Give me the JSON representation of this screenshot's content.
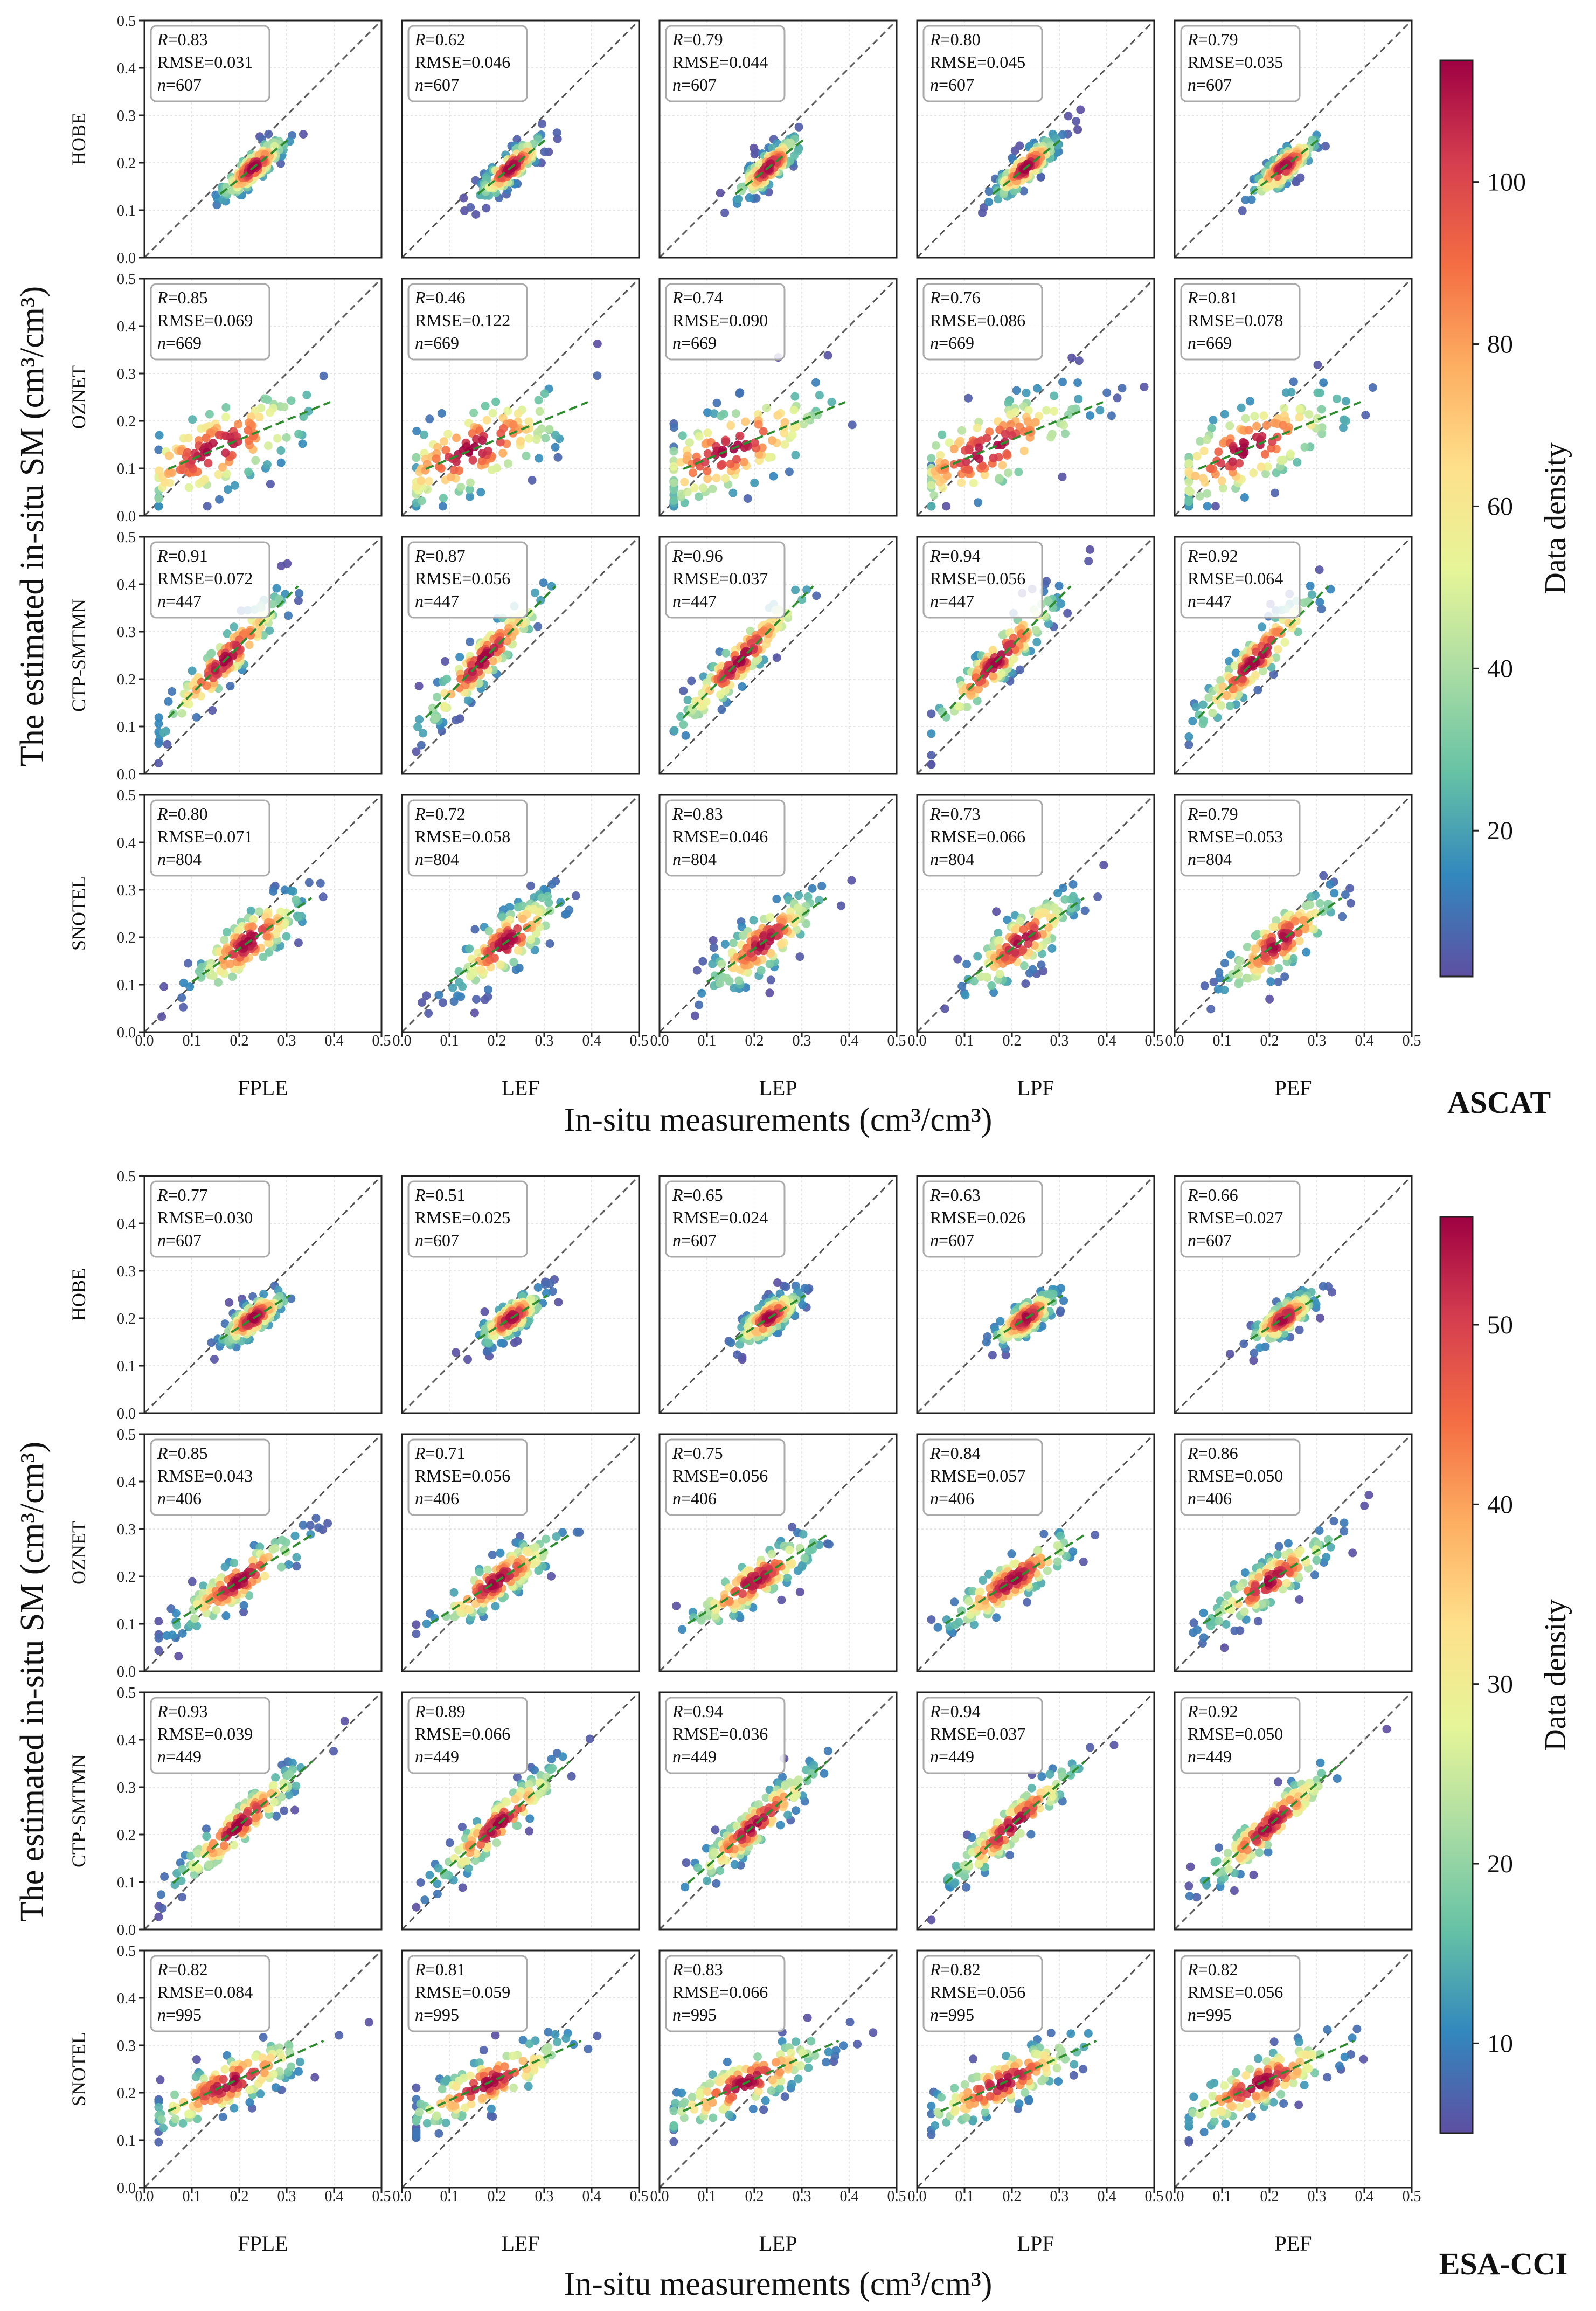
{
  "figure": {
    "sections": [
      {
        "product": "ASCAT",
        "ylabel": "The estimated in-situ SM (cm³/cm³)",
        "xlabel": "In-situ measurements (cm³/cm³)",
        "colorbar": {
          "label": "Data density",
          "min": 2,
          "max": 115,
          "ticks": [
            20,
            40,
            60,
            80,
            100
          ]
        }
      },
      {
        "product": "ESA-CCI",
        "ylabel": "The estimated in-situ SM (cm³/cm³)",
        "xlabel": "In-situ measurements (cm³/cm³)",
        "colorbar": {
          "label": "Data density",
          "min": 5,
          "max": 56,
          "ticks": [
            10,
            20,
            30,
            40,
            50
          ]
        }
      }
    ],
    "axis_ticks": [
      "0.0",
      "0.1",
      "0.2",
      "0.3",
      "0.4",
      "0.5"
    ],
    "methods": [
      "FPLE",
      "LEF",
      "LEP",
      "LPF",
      "PEF"
    ],
    "networks": [
      "HOBE",
      "OZNET",
      "CTP-SMTMN",
      "SNOTEL"
    ],
    "colormap": [
      "#5e4fa2",
      "#3288bd",
      "#66c2a5",
      "#abdda4",
      "#e6f598",
      "#fee08b",
      "#fdae61",
      "#f46d43",
      "#d53e4f",
      "#9e0142"
    ],
    "stat_labels": {
      "r": "R",
      "rmse": "RMSE=",
      "n": "n"
    }
  },
  "chart_data": [
    {
      "type": "scatter",
      "title": "ASCAT",
      "xlabel": "In-situ measurements (cm³/cm³)",
      "ylabel": "The estimated in-situ SM (cm³/cm³)",
      "xlim": [
        0,
        0.5
      ],
      "ylim": [
        0,
        0.5
      ],
      "reference_line": "1:1 dashed",
      "rows": [
        "HOBE",
        "OZNET",
        "CTP-SMTMN",
        "SNOTEL"
      ],
      "cols": [
        "FPLE",
        "LEF",
        "LEP",
        "LPF",
        "PEF"
      ],
      "stats": [
        [
          {
            "R": "0.83",
            "RMSE": "0.031",
            "n": "607"
          },
          {
            "R": "0.62",
            "RMSE": "0.046",
            "n": "607"
          },
          {
            "R": "0.79",
            "RMSE": "0.044",
            "n": "607"
          },
          {
            "R": "0.80",
            "RMSE": "0.045",
            "n": "607"
          },
          {
            "R": "0.79",
            "RMSE": "0.035",
            "n": "607"
          }
        ],
        [
          {
            "R": "0.85",
            "RMSE": "0.069",
            "n": "669"
          },
          {
            "R": "0.46",
            "RMSE": "0.122",
            "n": "669"
          },
          {
            "R": "0.74",
            "RMSE": "0.090",
            "n": "669"
          },
          {
            "R": "0.76",
            "RMSE": "0.086",
            "n": "669"
          },
          {
            "R": "0.81",
            "RMSE": "0.078",
            "n": "669"
          }
        ],
        [
          {
            "R": "0.91",
            "RMSE": "0.072",
            "n": "447"
          },
          {
            "R": "0.87",
            "RMSE": "0.056",
            "n": "447"
          },
          {
            "R": "0.96",
            "RMSE": "0.037",
            "n": "447"
          },
          {
            "R": "0.94",
            "RMSE": "0.056",
            "n": "447"
          },
          {
            "R": "0.92",
            "RMSE": "0.064",
            "n": "447"
          }
        ],
        [
          {
            "R": "0.80",
            "RMSE": "0.071",
            "n": "804"
          },
          {
            "R": "0.72",
            "RMSE": "0.058",
            "n": "804"
          },
          {
            "R": "0.83",
            "RMSE": "0.046",
            "n": "804"
          },
          {
            "R": "0.73",
            "RMSE": "0.066",
            "n": "804"
          },
          {
            "R": "0.79",
            "RMSE": "0.053",
            "n": "804"
          }
        ]
      ],
      "point_clouds": {
        "HOBE": {
          "cx": 0.23,
          "cy": 0.19,
          "sx": 0.035,
          "sy": 0.035,
          "corr": 0.8,
          "slope": 1.0
        },
        "OZNET": {
          "cx": 0.15,
          "cy": 0.14,
          "sx": 0.11,
          "sy": 0.08,
          "corr": 0.75,
          "slope": 0.55
        },
        "CTP-SMTMN": {
          "cx": 0.17,
          "cy": 0.24,
          "sx": 0.07,
          "sy": 0.08,
          "corr": 0.92,
          "slope": 1.1
        },
        "SNOTEL": {
          "cx": 0.22,
          "cy": 0.19,
          "sx": 0.06,
          "sy": 0.06,
          "corr": 0.78,
          "slope": 0.9
        }
      }
    },
    {
      "type": "scatter",
      "title": "ESA-CCI",
      "xlabel": "In-situ measurements (cm³/cm³)",
      "ylabel": "The estimated in-situ SM (cm³/cm³)",
      "xlim": [
        0,
        0.5
      ],
      "ylim": [
        0,
        0.5
      ],
      "reference_line": "1:1 dashed",
      "rows": [
        "HOBE",
        "OZNET",
        "CTP-SMTMN",
        "SNOTEL"
      ],
      "cols": [
        "FPLE",
        "LEF",
        "LEP",
        "LPF",
        "PEF"
      ],
      "stats": [
        [
          {
            "R": "0.77",
            "RMSE": "0.030",
            "n": "607"
          },
          {
            "R": "0.51",
            "RMSE": "0.025",
            "n": "607"
          },
          {
            "R": "0.65",
            "RMSE": "0.024",
            "n": "607"
          },
          {
            "R": "0.63",
            "RMSE": "0.026",
            "n": "607"
          },
          {
            "R": "0.66",
            "RMSE": "0.027",
            "n": "607"
          }
        ],
        [
          {
            "R": "0.85",
            "RMSE": "0.043",
            "n": "406"
          },
          {
            "R": "0.71",
            "RMSE": "0.056",
            "n": "406"
          },
          {
            "R": "0.75",
            "RMSE": "0.056",
            "n": "406"
          },
          {
            "R": "0.84",
            "RMSE": "0.057",
            "n": "406"
          },
          {
            "R": "0.86",
            "RMSE": "0.050",
            "n": "406"
          }
        ],
        [
          {
            "R": "0.93",
            "RMSE": "0.039",
            "n": "449"
          },
          {
            "R": "0.89",
            "RMSE": "0.066",
            "n": "449"
          },
          {
            "R": "0.94",
            "RMSE": "0.036",
            "n": "449"
          },
          {
            "R": "0.94",
            "RMSE": "0.037",
            "n": "449"
          },
          {
            "R": "0.92",
            "RMSE": "0.050",
            "n": "449"
          }
        ],
        [
          {
            "R": "0.82",
            "RMSE": "0.084",
            "n": "995"
          },
          {
            "R": "0.81",
            "RMSE": "0.059",
            "n": "995"
          },
          {
            "R": "0.83",
            "RMSE": "0.066",
            "n": "995"
          },
          {
            "R": "0.82",
            "RMSE": "0.056",
            "n": "995"
          },
          {
            "R": "0.82",
            "RMSE": "0.056",
            "n": "995"
          }
        ]
      ],
      "point_clouds": {
        "HOBE": {
          "cx": 0.23,
          "cy": 0.2,
          "sx": 0.035,
          "sy": 0.03,
          "corr": 0.7,
          "slope": 0.9
        },
        "OZNET": {
          "cx": 0.2,
          "cy": 0.19,
          "sx": 0.07,
          "sy": 0.055,
          "corr": 0.85,
          "slope": 0.75
        },
        "CTP-SMTMN": {
          "cx": 0.2,
          "cy": 0.22,
          "sx": 0.07,
          "sy": 0.07,
          "corr": 0.92,
          "slope": 0.95
        },
        "SNOTEL": {
          "cx": 0.18,
          "cy": 0.22,
          "sx": 0.09,
          "sy": 0.055,
          "corr": 0.82,
          "slope": 0.55
        }
      }
    }
  ]
}
